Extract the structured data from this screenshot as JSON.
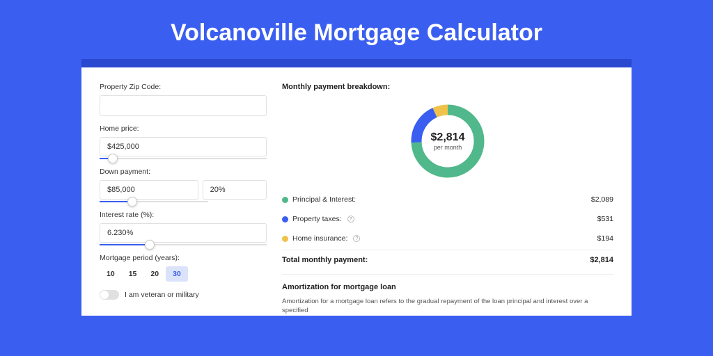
{
  "header": {
    "title": "Volcanoville Mortgage Calculator"
  },
  "form": {
    "zip_label": "Property Zip Code:",
    "zip_value": "",
    "price_label": "Home price:",
    "price_value": "$425,000",
    "price_slider": {
      "fill_pct": 8,
      "thumb_pct": 8
    },
    "down_label": "Down payment:",
    "down_value": "$85,000",
    "down_pct": "20%",
    "down_slider": {
      "fill_pct": 20,
      "thumb_pct": 20
    },
    "rate_label": "Interest rate (%):",
    "rate_value": "6.230%",
    "rate_slider": {
      "fill_pct": 30,
      "thumb_pct": 30
    },
    "period_label": "Mortgage period (years):",
    "periods": [
      {
        "label": "10",
        "active": false
      },
      {
        "label": "15",
        "active": false
      },
      {
        "label": "20",
        "active": false
      },
      {
        "label": "30",
        "active": true
      }
    ],
    "veteran_label": "I am veteran or military"
  },
  "breakdown": {
    "title": "Monthly payment breakdown:",
    "donut": {
      "center_value": "$2,814",
      "center_sub": "per month",
      "segments": [
        {
          "name": "principal_interest",
          "amount": 2089,
          "pct": 74.2,
          "color": "#50b88a"
        },
        {
          "name": "property_taxes",
          "amount": 531,
          "pct": 18.9,
          "color": "#3a5ef0"
        },
        {
          "name": "home_insurance",
          "amount": 194,
          "pct": 6.9,
          "color": "#f0c24a"
        }
      ],
      "stroke_width": 15,
      "radius": 45,
      "size": 120,
      "background_color": "#ffffff"
    },
    "rows": [
      {
        "dot": "#50b88a",
        "label": "Principal & Interest:",
        "help": false,
        "value": "$2,089"
      },
      {
        "dot": "#3a5ef0",
        "label": "Property taxes:",
        "help": true,
        "value": "$531"
      },
      {
        "dot": "#f0c24a",
        "label": "Home insurance:",
        "help": true,
        "value": "$194"
      }
    ],
    "total_label": "Total monthly payment:",
    "total_value": "$2,814"
  },
  "amortization": {
    "title": "Amortization for mortgage loan",
    "text": "Amortization for a mortgage loan refers to the gradual repayment of the loan principal and interest over a specified"
  },
  "colors": {
    "page_bg": "#3a5ef0",
    "outer_dark": "#2a48d0",
    "card_bg": "#ffffff",
    "border": "#e0e0e0",
    "text": "#333333",
    "accent": "#3a5ef0"
  }
}
